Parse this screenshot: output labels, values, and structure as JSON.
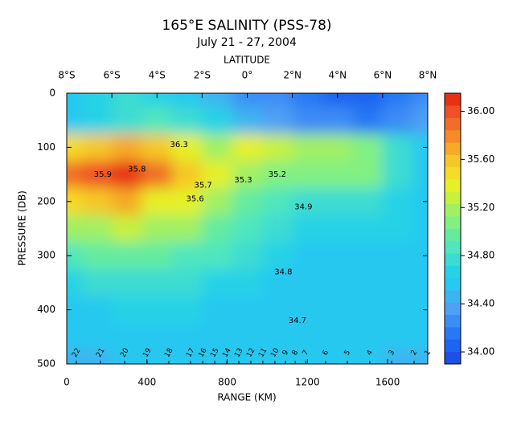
{
  "chart_data": {
    "type": "heatmap",
    "title": "165°E SALINITY (PSS-78)",
    "subtitle": "July 21 - 27, 2004",
    "x2_label": "LATITUDE",
    "xlabel": "RANGE (KM)",
    "ylabel": "PRESSURE (DB)",
    "xlim": [
      0,
      1800
    ],
    "xticks": [
      0,
      400,
      800,
      1200,
      1600
    ],
    "x2lim": [
      -8,
      8
    ],
    "x2ticks": [
      {
        "value": -8,
        "label": "8°S"
      },
      {
        "value": -6,
        "label": "6°S"
      },
      {
        "value": -4,
        "label": "4°S"
      },
      {
        "value": -2,
        "label": "2°S"
      },
      {
        "value": 0,
        "label": "0°"
      },
      {
        "value": 2,
        "label": "2°N"
      },
      {
        "value": 4,
        "label": "4°N"
      },
      {
        "value": 6,
        "label": "6°N"
      },
      {
        "value": 8,
        "label": "8°N"
      }
    ],
    "ylim": [
      0,
      500
    ],
    "y_inverted": true,
    "yticks": [
      0,
      100,
      200,
      300,
      400,
      500
    ],
    "x": [
      0,
      150,
      300,
      450,
      600,
      750,
      900,
      1050,
      1200,
      1350,
      1500,
      1650,
      1800
    ],
    "y": [
      0,
      50,
      100,
      150,
      200,
      250,
      300,
      350,
      400,
      450,
      500
    ],
    "values": [
      [
        34.6,
        34.7,
        34.8,
        34.7,
        34.6,
        34.5,
        34.3,
        34.3,
        34.2,
        34.1,
        34.1,
        34.2,
        34.3
      ],
      [
        34.6,
        34.7,
        34.8,
        34.9,
        34.8,
        34.7,
        34.5,
        34.4,
        34.3,
        34.3,
        34.2,
        34.3,
        34.4
      ],
      [
        35.5,
        35.6,
        35.7,
        35.6,
        35.4,
        35.2,
        35.4,
        35.3,
        35.2,
        35.2,
        35.1,
        34.8,
        34.6
      ],
      [
        35.9,
        36.0,
        36.1,
        35.9,
        35.6,
        35.4,
        35.2,
        35.1,
        35.1,
        35.1,
        35.1,
        34.8,
        34.6
      ],
      [
        35.5,
        35.6,
        35.7,
        35.4,
        35.4,
        35.2,
        35.0,
        34.9,
        34.8,
        34.8,
        34.8,
        34.7,
        34.6
      ],
      [
        35.2,
        35.2,
        35.3,
        35.2,
        35.2,
        35.0,
        34.9,
        34.8,
        34.7,
        34.7,
        34.7,
        34.7,
        34.6
      ],
      [
        34.9,
        35.0,
        35.0,
        35.0,
        34.9,
        34.9,
        34.8,
        34.7,
        34.6,
        34.6,
        34.6,
        34.6,
        34.6
      ],
      [
        34.7,
        34.8,
        34.8,
        34.8,
        34.8,
        34.7,
        34.7,
        34.6,
        34.6,
        34.6,
        34.6,
        34.6,
        34.6
      ],
      [
        34.6,
        34.6,
        34.7,
        34.7,
        34.7,
        34.6,
        34.6,
        34.6,
        34.6,
        34.6,
        34.6,
        34.6,
        34.6
      ],
      [
        34.6,
        34.6,
        34.6,
        34.6,
        34.6,
        34.6,
        34.6,
        34.6,
        34.6,
        34.6,
        34.6,
        34.6,
        34.6
      ],
      [
        34.5,
        34.5,
        34.6,
        34.6,
        34.6,
        34.6,
        34.6,
        34.6,
        34.6,
        34.6,
        34.6,
        34.5,
        34.5
      ]
    ],
    "colorbar": {
      "clim": [
        33.9,
        36.15
      ],
      "ticks": [
        {
          "value": 34,
          "label": "34.00"
        },
        {
          "value": 34.4,
          "label": "34.40"
        },
        {
          "value": 34.8,
          "label": "34.80"
        },
        {
          "value": 35.2,
          "label": "35.20"
        },
        {
          "value": 35.6,
          "label": "35.60"
        },
        {
          "value": 36,
          "label": "36.00"
        }
      ],
      "colors": [
        "#1e50e6",
        "#1e64f0",
        "#2878f5",
        "#3c8cf5",
        "#50a0f5",
        "#3cb4f0",
        "#28c8f0",
        "#28d2e6",
        "#3cdcd2",
        "#50e6be",
        "#64eba0",
        "#82f082",
        "#a0f064",
        "#c8f03c",
        "#e6f028",
        "#f5dc28",
        "#f5c828",
        "#f5aa28",
        "#f58c28",
        "#f06e28",
        "#f05028",
        "#e63214"
      ]
    },
    "contour_labels": [
      {
        "text": "35.9",
        "x": 180,
        "y": 150
      },
      {
        "text": "35.8",
        "x": 350,
        "y": 140
      },
      {
        "text": "35.6",
        "x": 640,
        "y": 195
      },
      {
        "text": "35.7",
        "x": 680,
        "y": 170
      },
      {
        "text": "35.3",
        "x": 880,
        "y": 160
      },
      {
        "text": "35.2",
        "x": 1050,
        "y": 150
      },
      {
        "text": "34.9",
        "x": 1180,
        "y": 210
      },
      {
        "text": "34.8",
        "x": 1080,
        "y": 330
      },
      {
        "text": "34.7",
        "x": 1150,
        "y": 420
      },
      {
        "text": "36.3",
        "x": 560,
        "y": 95
      }
    ],
    "stations": {
      "labels": [
        22,
        21,
        20,
        19,
        18,
        17,
        16,
        15,
        14,
        13,
        12,
        11,
        10,
        9,
        8,
        7,
        6,
        5,
        4,
        3,
        2,
        1
      ],
      "x": [
        48,
        168,
        289,
        401,
        509,
        617,
        678,
        738,
        798,
        858,
        918,
        978,
        1038,
        1091,
        1139,
        1191,
        1291,
        1399,
        1511,
        1620,
        1732,
        1800
      ]
    }
  }
}
